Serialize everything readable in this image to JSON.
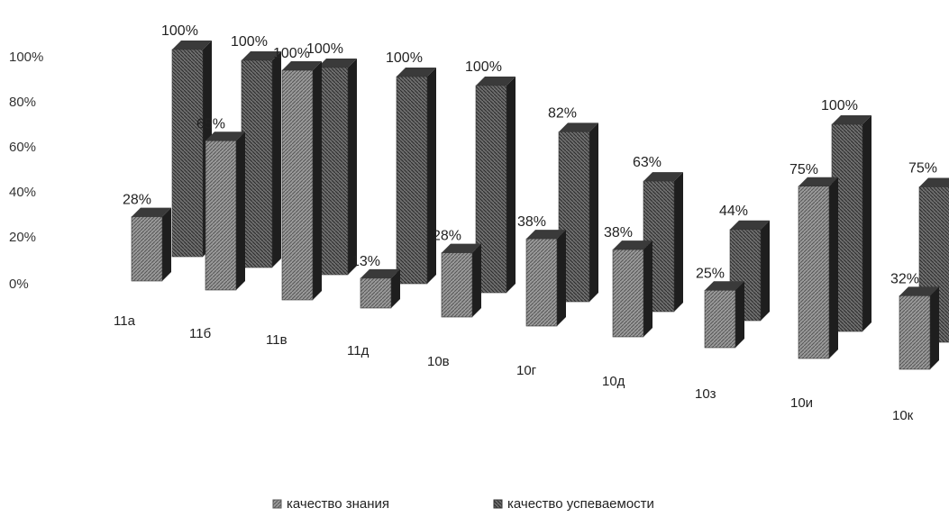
{
  "chart_data": {
    "type": "bar",
    "categories": [
      "11а",
      "11б",
      "11в",
      "11д",
      "10в",
      "10г",
      "10д",
      "10з",
      "10и",
      "10к"
    ],
    "series": [
      {
        "name": "качество знания",
        "values": [
          28,
          65,
          100,
          13,
          28,
          38,
          38,
          25,
          75,
          32
        ]
      },
      {
        "name": "качество успеваемости",
        "values": [
          100,
          100,
          100,
          100,
          100,
          82,
          63,
          44,
          100,
          75
        ]
      }
    ],
    "data_labels": {
      "knowledge": [
        "28%",
        "65%",
        "100%",
        "13%",
        "28%",
        "38%",
        "38%",
        "25%",
        "75%",
        "32%"
      ],
      "performance": [
        "100%",
        "100%",
        "100%",
        "100%",
        "100%",
        "82%",
        "63%",
        "44%",
        "100%",
        "75%"
      ]
    },
    "y_ticks": [
      "0%",
      "20%",
      "40%",
      "60%",
      "80%",
      "100%"
    ],
    "ylim": [
      0,
      100
    ],
    "grid": false,
    "legend_position": "bottom",
    "colors": {
      "knowledge": "#8a8a8a",
      "performance": "#5a5a5a",
      "shade_dark": "#1e1e1e",
      "text": "#222222"
    }
  }
}
